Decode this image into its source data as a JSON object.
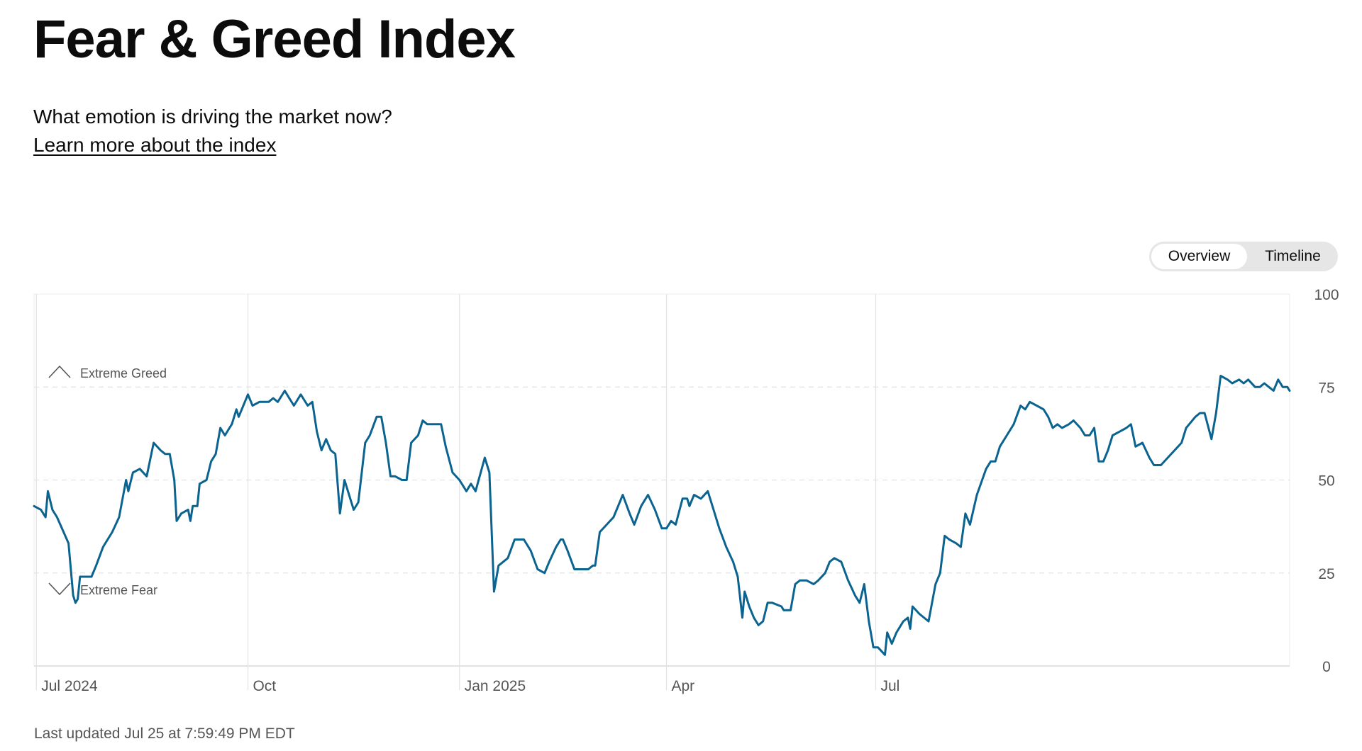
{
  "header": {
    "title": "Fear & Greed Index",
    "subtitle": "What emotion is driving the market now?",
    "learn_more": "Learn more about the index"
  },
  "toggle": {
    "overview": "Overview",
    "timeline": "Timeline",
    "selected": "Overview"
  },
  "footer": {
    "last_updated": "Last updated Jul 25 at 7:59:49 PM EDT"
  },
  "chart_data": {
    "type": "line",
    "x_axis": {
      "type": "date",
      "labels": [
        "Jul 2024",
        "Oct",
        "Jan 2025",
        "Apr",
        "Jul"
      ],
      "label_dates": [
        "2024-07-01",
        "2024-10-01",
        "2025-01-01",
        "2025-04-01",
        "2025-07-01"
      ]
    },
    "y_axis": {
      "ylim": [
        0,
        100
      ],
      "ticks": [
        0,
        25,
        50,
        75,
        100
      ],
      "position": "right"
    },
    "zones": [
      {
        "label": "Extreme Greed",
        "icon": "chevron-up-icon",
        "threshold": 75
      },
      {
        "label": "Extreme Fear",
        "icon": "chevron-down-icon",
        "threshold": 25
      }
    ],
    "colors": {
      "line": "#0b6390",
      "grid": "#e2e2e2",
      "text": "#555555"
    },
    "series": [
      {
        "points": [
          [
            "2024-06-30",
            43
          ],
          [
            "2024-07-03",
            42
          ],
          [
            "2024-07-05",
            40
          ],
          [
            "2024-07-06",
            47
          ],
          [
            "2024-07-08",
            42
          ],
          [
            "2024-07-10",
            40
          ],
          [
            "2024-07-15",
            33
          ],
          [
            "2024-07-17",
            19
          ],
          [
            "2024-07-18",
            17
          ],
          [
            "2024-07-19",
            18
          ],
          [
            "2024-07-20",
            24
          ],
          [
            "2024-07-23",
            24
          ],
          [
            "2024-07-25",
            24
          ],
          [
            "2024-07-27",
            27
          ],
          [
            "2024-07-30",
            32
          ],
          [
            "2024-08-03",
            36
          ],
          [
            "2024-08-06",
            40
          ],
          [
            "2024-08-09",
            50
          ],
          [
            "2024-08-10",
            47
          ],
          [
            "2024-08-12",
            52
          ],
          [
            "2024-08-15",
            53
          ],
          [
            "2024-08-18",
            51
          ],
          [
            "2024-08-21",
            60
          ],
          [
            "2024-08-24",
            58
          ],
          [
            "2024-08-26",
            57
          ],
          [
            "2024-08-28",
            57
          ],
          [
            "2024-08-30",
            50
          ],
          [
            "2024-08-31",
            39
          ],
          [
            "2024-09-02",
            41
          ],
          [
            "2024-09-05",
            42
          ],
          [
            "2024-09-06",
            39
          ],
          [
            "2024-09-07",
            43
          ],
          [
            "2024-09-09",
            43
          ],
          [
            "2024-09-10",
            49
          ],
          [
            "2024-09-13",
            50
          ],
          [
            "2024-09-15",
            55
          ],
          [
            "2024-09-17",
            57
          ],
          [
            "2024-09-19",
            64
          ],
          [
            "2024-09-21",
            62
          ],
          [
            "2024-09-23",
            64
          ],
          [
            "2024-09-24",
            65
          ],
          [
            "2024-09-26",
            69
          ],
          [
            "2024-09-27",
            67
          ],
          [
            "2024-09-29",
            70
          ],
          [
            "2024-10-01",
            73
          ],
          [
            "2024-10-03",
            70
          ],
          [
            "2024-10-06",
            71
          ],
          [
            "2024-10-08",
            71
          ],
          [
            "2024-10-10",
            71
          ],
          [
            "2024-10-12",
            72
          ],
          [
            "2024-10-14",
            71
          ],
          [
            "2024-10-17",
            74
          ],
          [
            "2024-10-19",
            72
          ],
          [
            "2024-10-21",
            70
          ],
          [
            "2024-10-24",
            73
          ],
          [
            "2024-10-27",
            70
          ],
          [
            "2024-10-29",
            71
          ],
          [
            "2024-10-31",
            63
          ],
          [
            "2024-11-02",
            58
          ],
          [
            "2024-11-04",
            61
          ],
          [
            "2024-11-06",
            58
          ],
          [
            "2024-11-08",
            57
          ],
          [
            "2024-11-10",
            41
          ],
          [
            "2024-11-12",
            50
          ],
          [
            "2024-11-14",
            46
          ],
          [
            "2024-11-16",
            42
          ],
          [
            "2024-11-18",
            44
          ],
          [
            "2024-11-21",
            60
          ],
          [
            "2024-11-23",
            62
          ],
          [
            "2024-11-26",
            67
          ],
          [
            "2024-11-28",
            67
          ],
          [
            "2024-11-30",
            60
          ],
          [
            "2024-12-02",
            51
          ],
          [
            "2024-12-04",
            51
          ],
          [
            "2024-12-07",
            50
          ],
          [
            "2024-12-09",
            50
          ],
          [
            "2024-12-11",
            60
          ],
          [
            "2024-12-14",
            62
          ],
          [
            "2024-12-16",
            66
          ],
          [
            "2024-12-18",
            65
          ],
          [
            "2024-12-21",
            65
          ],
          [
            "2024-12-24",
            65
          ],
          [
            "2024-12-26",
            59
          ],
          [
            "2024-12-29",
            52
          ],
          [
            "2025-01-01",
            50
          ],
          [
            "2025-01-04",
            47
          ],
          [
            "2025-01-06",
            49
          ],
          [
            "2025-01-08",
            47
          ],
          [
            "2025-01-12",
            56
          ],
          [
            "2025-01-14",
            52
          ],
          [
            "2025-01-16",
            20
          ],
          [
            "2025-01-18",
            27
          ],
          [
            "2025-01-22",
            29
          ],
          [
            "2025-01-25",
            34
          ],
          [
            "2025-01-29",
            34
          ],
          [
            "2025-02-01",
            31
          ],
          [
            "2025-02-04",
            26
          ],
          [
            "2025-02-07",
            25
          ],
          [
            "2025-02-09",
            28
          ],
          [
            "2025-02-12",
            32
          ],
          [
            "2025-02-14",
            34
          ],
          [
            "2025-02-15",
            34
          ],
          [
            "2025-02-17",
            31
          ],
          [
            "2025-02-20",
            26
          ],
          [
            "2025-02-23",
            26
          ],
          [
            "2025-02-26",
            26
          ],
          [
            "2025-02-28",
            27
          ],
          [
            "2025-03-01",
            27
          ],
          [
            "2025-03-03",
            36
          ],
          [
            "2025-03-06",
            38
          ],
          [
            "2025-03-09",
            40
          ],
          [
            "2025-03-13",
            46
          ],
          [
            "2025-03-16",
            41
          ],
          [
            "2025-03-18",
            38
          ],
          [
            "2025-03-21",
            43
          ],
          [
            "2025-03-24",
            46
          ],
          [
            "2025-03-27",
            42
          ],
          [
            "2025-03-30",
            37
          ],
          [
            "2025-04-01",
            37
          ],
          [
            "2025-04-03",
            39
          ],
          [
            "2025-04-05",
            38
          ],
          [
            "2025-04-08",
            45
          ],
          [
            "2025-04-10",
            45
          ],
          [
            "2025-04-11",
            43
          ],
          [
            "2025-04-13",
            46
          ],
          [
            "2025-04-16",
            45
          ],
          [
            "2025-04-19",
            47
          ],
          [
            "2025-04-21",
            43
          ],
          [
            "2025-04-24",
            37
          ],
          [
            "2025-04-27",
            32
          ],
          [
            "2025-04-30",
            28
          ],
          [
            "2025-05-02",
            24
          ],
          [
            "2025-05-04",
            13
          ],
          [
            "2025-05-05",
            20
          ],
          [
            "2025-05-07",
            16
          ],
          [
            "2025-05-09",
            13
          ],
          [
            "2025-05-11",
            11
          ],
          [
            "2025-05-13",
            12
          ],
          [
            "2025-05-15",
            17
          ],
          [
            "2025-05-17",
            17
          ],
          [
            "2025-05-21",
            16
          ],
          [
            "2025-05-22",
            15
          ],
          [
            "2025-05-23",
            15
          ],
          [
            "2025-05-25",
            15
          ],
          [
            "2025-05-27",
            22
          ],
          [
            "2025-05-29",
            23
          ],
          [
            "2025-06-01",
            23
          ],
          [
            "2025-06-04",
            22
          ],
          [
            "2025-06-06",
            23
          ],
          [
            "2025-06-09",
            25
          ],
          [
            "2025-06-11",
            28
          ],
          [
            "2025-06-13",
            29
          ],
          [
            "2025-06-16",
            28
          ],
          [
            "2025-06-19",
            23
          ],
          [
            "2025-06-22",
            19
          ],
          [
            "2025-06-24",
            17
          ],
          [
            "2025-06-26",
            22
          ],
          [
            "2025-06-28",
            12
          ],
          [
            "2025-06-30",
            5
          ],
          [
            "2025-07-02",
            5
          ],
          [
            "2025-07-05",
            3
          ],
          [
            "2025-07-06",
            9
          ],
          [
            "2025-07-08",
            6
          ],
          [
            "2025-07-10",
            9
          ],
          [
            "2025-07-13",
            12
          ],
          [
            "2025-07-15",
            13
          ],
          [
            "2025-07-16",
            10
          ],
          [
            "2025-07-17",
            16
          ],
          [
            "2025-07-20",
            14
          ],
          [
            "2025-07-24",
            12
          ],
          [
            "2025-07-27",
            22
          ],
          [
            "2025-07-29",
            25
          ],
          [
            "2025-07-31",
            35
          ],
          [
            "2025-08-02",
            34
          ],
          [
            "2025-08-05",
            33
          ],
          [
            "2025-08-07",
            32
          ],
          [
            "2025-08-09",
            41
          ],
          [
            "2025-08-11",
            38
          ],
          [
            "2025-08-14",
            46
          ],
          [
            "2025-08-18",
            53
          ],
          [
            "2025-08-20",
            55
          ],
          [
            "2025-08-22",
            55
          ],
          [
            "2025-08-24",
            59
          ],
          [
            "2025-08-27",
            62
          ],
          [
            "2025-08-30",
            65
          ],
          [
            "2025-09-02",
            70
          ],
          [
            "2025-09-04",
            69
          ],
          [
            "2025-09-06",
            71
          ],
          [
            "2025-09-09",
            70
          ],
          [
            "2025-09-12",
            69
          ],
          [
            "2025-09-14",
            67
          ],
          [
            "2025-09-16",
            64
          ],
          [
            "2025-09-18",
            65
          ],
          [
            "2025-09-20",
            64
          ],
          [
            "2025-09-23",
            65
          ],
          [
            "2025-09-25",
            66
          ],
          [
            "2025-09-28",
            64
          ],
          [
            "2025-09-30",
            62
          ],
          [
            "2025-10-02",
            62
          ],
          [
            "2025-10-04",
            64
          ],
          [
            "2025-10-06",
            55
          ],
          [
            "2025-10-08",
            55
          ],
          [
            "2025-10-10",
            58
          ],
          [
            "2025-10-12",
            62
          ],
          [
            "2025-10-15",
            63
          ],
          [
            "2025-10-18",
            64
          ],
          [
            "2025-10-20",
            65
          ],
          [
            "2025-10-22",
            59
          ],
          [
            "2025-10-25",
            60
          ],
          [
            "2025-10-28",
            56
          ],
          [
            "2025-10-30",
            54
          ],
          [
            "2025-11-02",
            54
          ],
          [
            "2025-11-05",
            56
          ],
          [
            "2025-11-08",
            58
          ],
          [
            "2025-11-11",
            60
          ],
          [
            "2025-11-13",
            64
          ],
          [
            "2025-11-17",
            67
          ],
          [
            "2025-11-19",
            68
          ],
          [
            "2025-11-21",
            68
          ],
          [
            "2025-11-24",
            61
          ],
          [
            "2025-11-26",
            68
          ],
          [
            "2025-11-28",
            78
          ],
          [
            "2025-12-01",
            77
          ],
          [
            "2025-12-03",
            76
          ],
          [
            "2025-12-06",
            77
          ],
          [
            "2025-12-08",
            76
          ],
          [
            "2025-12-10",
            77
          ],
          [
            "2025-12-13",
            75
          ],
          [
            "2025-12-15",
            75
          ],
          [
            "2025-12-17",
            76
          ],
          [
            "2025-12-19",
            75
          ],
          [
            "2025-12-21",
            74
          ],
          [
            "2025-12-23",
            77
          ],
          [
            "2025-12-25",
            75
          ],
          [
            "2025-12-27",
            75
          ],
          [
            "2025-12-28",
            74
          ]
        ]
      }
    ]
  }
}
